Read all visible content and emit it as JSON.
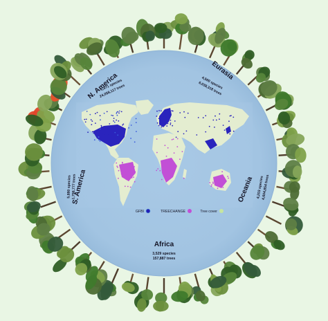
{
  "regions": {
    "north_america": {
      "name": "N. America",
      "species": "1,871 species",
      "trees": "24,058,117 trees"
    },
    "eurasia": {
      "name": "Eurasia",
      "species": "4,560 species",
      "trees": "6,038,318 trees"
    },
    "south_america": {
      "name": "S. America",
      "species": "5,880 species",
      "trees": "1,798,777 trees"
    },
    "oceania": {
      "name": "Oceania",
      "species": "4,203 species",
      "trees": "4,604,854 trees"
    },
    "africa": {
      "name": "Africa",
      "species": "3,529 species",
      "trees": "157,887 trees"
    }
  },
  "legend": {
    "gfbi": "GFBI",
    "treechange": "TREECHANGE",
    "tree_cover": "Tree cover"
  },
  "colors": {
    "background": "#e9f6e4",
    "disc": "#a6c7e5",
    "land": "#e4edd0",
    "gfbi": "#2320b8",
    "treechange": "#c24fd6",
    "tree_cover": "#c6e6a0",
    "text": "#151526"
  }
}
